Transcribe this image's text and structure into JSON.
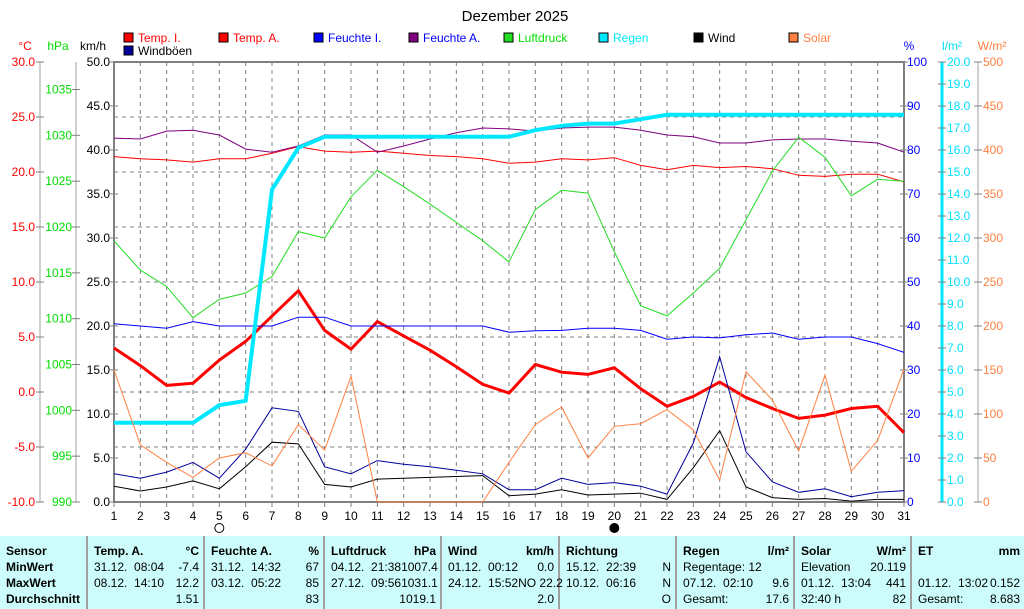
{
  "chart_data": {
    "type": "line",
    "title": "Dezember 2025",
    "x": [
      1,
      2,
      3,
      4,
      5,
      6,
      7,
      8,
      9,
      10,
      11,
      12,
      13,
      14,
      15,
      16,
      17,
      18,
      19,
      20,
      21,
      22,
      23,
      24,
      25,
      26,
      27,
      28,
      29,
      30,
      31
    ],
    "xlabel": "",
    "grid": true,
    "legend_placement": "top",
    "moon_phases": [
      {
        "day": 5,
        "phase": "new-moon"
      },
      {
        "day": 20,
        "phase": "full-moon"
      }
    ],
    "axes": {
      "temp": {
        "unit": "°C",
        "range": [
          -10,
          30
        ],
        "ticks": [
          30,
          25,
          20,
          15,
          10,
          5,
          0,
          -5,
          -10
        ],
        "color": "#ff0000",
        "decimals": 1
      },
      "pressure": {
        "unit": "hPa",
        "range": [
          990,
          1038
        ],
        "ticks": [
          1035,
          1030,
          1025,
          1020,
          1015,
          1010,
          1005,
          1000,
          995,
          990
        ],
        "color": "#00dd00",
        "decimals": 0
      },
      "wind": {
        "unit": "km/h",
        "range": [
          0,
          50
        ],
        "ticks": [
          50,
          45,
          40,
          35,
          30,
          25,
          20,
          15,
          10,
          5,
          0
        ],
        "color": "#000000",
        "decimals": 1
      },
      "humidity": {
        "unit": "%",
        "range": [
          0,
          100
        ],
        "ticks": [
          100,
          90,
          80,
          70,
          60,
          50,
          40,
          30,
          20,
          10,
          0
        ],
        "color": "#0000ff",
        "decimals": 0
      },
      "rain": {
        "unit": "l/m²",
        "range": [
          0,
          20
        ],
        "ticks": [
          20,
          19,
          18,
          17,
          16,
          15,
          14,
          13,
          12,
          11,
          10,
          9,
          8,
          7,
          6,
          5,
          4,
          3,
          2,
          1,
          0
        ],
        "color": "#00e0ff",
        "decimals": 1
      },
      "solar": {
        "unit": "W/m²",
        "range": [
          0,
          500
        ],
        "ticks": [
          500,
          450,
          400,
          350,
          300,
          250,
          200,
          150,
          100,
          50,
          0
        ],
        "color": "#ff8040",
        "decimals": 0
      }
    },
    "series": [
      {
        "name": "Temp. I.",
        "axis": "temp",
        "color": "#ff0000",
        "width": 1,
        "legend_text_color": "#ff0000",
        "values": [
          21.4,
          21.2,
          21.1,
          20.9,
          21.2,
          21.2,
          21.7,
          22.3,
          21.9,
          21.8,
          21.9,
          21.7,
          21.5,
          21.4,
          21.2,
          20.8,
          20.9,
          21.2,
          21.1,
          21.3,
          20.6,
          20.2,
          20.6,
          20.4,
          20.5,
          20.3,
          19.7,
          19.6,
          19.8,
          19.8,
          19.1
        ]
      },
      {
        "name": "Temp. A.",
        "axis": "temp",
        "color": "#ff0000",
        "width": 3,
        "legend_text_color": "#ff0000",
        "values": [
          4.0,
          2.4,
          0.6,
          0.8,
          2.9,
          4.6,
          6.9,
          9.2,
          5.6,
          3.9,
          6.4,
          5.1,
          3.8,
          2.3,
          0.7,
          -0.1,
          2.5,
          1.8,
          1.6,
          2.2,
          0.3,
          -1.3,
          -0.4,
          0.9,
          -0.5,
          -1.5,
          -2.4,
          -2.1,
          -1.5,
          -1.3,
          -3.7
        ]
      },
      {
        "name": "Feuchte I.",
        "axis": "humidity",
        "color": "#0000ff",
        "width": 1,
        "legend_text_color": "#0000ff",
        "values": [
          40.5,
          40,
          39.5,
          41,
          40,
          40,
          40,
          42,
          42,
          40,
          40,
          40,
          40,
          40,
          40,
          38.6,
          38.9,
          39,
          39.5,
          39.5,
          39,
          37,
          37.5,
          37.3,
          38,
          38.4,
          37,
          37.5,
          37.5,
          36,
          34
        ]
      },
      {
        "name": "Feuchte A.",
        "axis": "humidity",
        "color": "#800080",
        "width": 1,
        "legend_text_color": "#0000ff",
        "values": [
          82.7,
          82.5,
          84.3,
          84.5,
          83.4,
          80.2,
          79.5,
          80.9,
          83.4,
          83.4,
          79.5,
          80.9,
          82.5,
          83.9,
          85,
          84.8,
          84.3,
          85,
          85.2,
          85.2,
          84.5,
          83.4,
          83,
          81.6,
          81.6,
          82.3,
          82.5,
          82.5,
          82,
          81.6,
          79.5
        ]
      },
      {
        "name": "Luftdruck",
        "axis": "pressure",
        "color": "#22dd22",
        "width": 1,
        "legend_text_color": "#00dd00",
        "values": [
          1018.5,
          1015.3,
          1013.5,
          1010.1,
          1012.1,
          1012.8,
          1014.6,
          1019.5,
          1018.8,
          1023.3,
          1026.2,
          1024.4,
          1022.5,
          1020.5,
          1018.5,
          1016.2,
          1021.9,
          1024.0,
          1023.7,
          1017.3,
          1011.4,
          1010.3,
          1012.8,
          1015.5,
          1020.8,
          1026.1,
          1029.8,
          1027.6,
          1023.4,
          1025.2,
          1025.0
        ]
      },
      {
        "name": "Regen",
        "axis": "rain",
        "color": "#00e8ff",
        "width": 4,
        "legend_text_color": "#00e8ff",
        "values": [
          3.6,
          3.6,
          3.6,
          3.6,
          4.4,
          4.6,
          14.2,
          16.1,
          16.6,
          16.6,
          16.6,
          16.6,
          16.6,
          16.6,
          16.6,
          16.6,
          16.9,
          17.1,
          17.2,
          17.2,
          17.4,
          17.6,
          17.6,
          17.6,
          17.6,
          17.6,
          17.6,
          17.6,
          17.6,
          17.6,
          17.6
        ]
      },
      {
        "name": "Wind",
        "axis": "wind",
        "color": "#000000",
        "width": 1,
        "legend_text_color": "#000000",
        "values": [
          1.8,
          1.25,
          1.7,
          2.4,
          1.5,
          4.0,
          6.8,
          6.6,
          2.0,
          1.7,
          2.6,
          2.7,
          2.8,
          2.9,
          3.0,
          0.7,
          0.9,
          1.4,
          0.8,
          0.9,
          1.0,
          0.3,
          3.9,
          8.1,
          1.7,
          0.5,
          0.3,
          0.4,
          0.1,
          0.3,
          0.3
        ]
      },
      {
        "name": "Windböen",
        "axis": "wind",
        "color": "#000099",
        "width": 1,
        "legend_text_color": "#000000",
        "values": [
          3.2,
          2.7,
          3.4,
          4.5,
          2.7,
          6.0,
          10.7,
          10.3,
          4.0,
          3.2,
          4.7,
          4.3,
          4.0,
          3.6,
          3.2,
          1.4,
          1.4,
          2.7,
          2.0,
          2.2,
          1.8,
          0.9,
          6.7,
          16.5,
          5.7,
          2.3,
          1.1,
          1.5,
          0.6,
          1.1,
          1.3
        ]
      },
      {
        "name": "Solar",
        "axis": "solar",
        "color": "#ff8040",
        "width": 1,
        "legend_text_color": "#ff8040",
        "values": [
          150,
          65,
          45,
          28,
          50,
          56,
          41,
          88,
          59,
          143,
          0,
          0,
          0,
          0,
          0,
          45,
          88,
          108,
          50,
          86,
          89,
          105,
          82,
          25,
          148,
          116,
          58,
          144,
          35,
          70,
          151
        ]
      }
    ]
  },
  "stats": {
    "labels": {
      "header": "Sensor",
      "rows": [
        "MinWert",
        "MaxWert",
        "Durchschnitt"
      ]
    },
    "sections": [
      {
        "title": "Temp. A.",
        "unit": "°C",
        "rows": [
          [
            "31.12.  08:04",
            "-7.4"
          ],
          [
            "08.12.  14:10",
            "12.2"
          ],
          [
            "",
            "1.51"
          ]
        ]
      },
      {
        "title": "Feuchte A.",
        "unit": "%",
        "rows": [
          [
            "31.12.  14:32",
            "67"
          ],
          [
            "03.12.  05:22",
            "85"
          ],
          [
            "",
            "83"
          ]
        ]
      },
      {
        "title": "Luftdruck",
        "unit": "hPa",
        "rows": [
          [
            "04.12.  21:38",
            "1007.4"
          ],
          [
            "27.12.  09:56",
            "1031.1"
          ],
          [
            "",
            "1019.1"
          ]
        ]
      },
      {
        "title": "Wind",
        "unit": "km/h",
        "rows": [
          [
            "01.12.  00:12",
            "0.0"
          ],
          [
            "24.12.  15:52",
            "NO 22.2"
          ],
          [
            "",
            "2.0"
          ]
        ]
      },
      {
        "title": "Richtung",
        "unit": "",
        "rows": [
          [
            "15.12.  22:39",
            "N"
          ],
          [
            "10.12.  06:16",
            "N"
          ],
          [
            "",
            "O"
          ]
        ]
      },
      {
        "title": "Regen",
        "unit": "l/m²",
        "rows": [
          [
            "Regentage: 12",
            ""
          ],
          [
            "07.12.  02:10",
            "9.6"
          ],
          [
            "Gesamt:",
            "17.6"
          ]
        ]
      },
      {
        "title": "Solar",
        "unit": "W/m²",
        "rows": [
          [
            "Elevation",
            "20.119"
          ],
          [
            "01.12.  13:04",
            "441"
          ],
          [
            "32:40 h",
            "82"
          ]
        ]
      },
      {
        "title": "ET",
        "unit": "mm",
        "rows": [
          [
            "",
            ""
          ],
          [
            "01.12.  13:02",
            "0.152"
          ],
          [
            "Gesamt:",
            "8.683"
          ]
        ]
      }
    ]
  }
}
